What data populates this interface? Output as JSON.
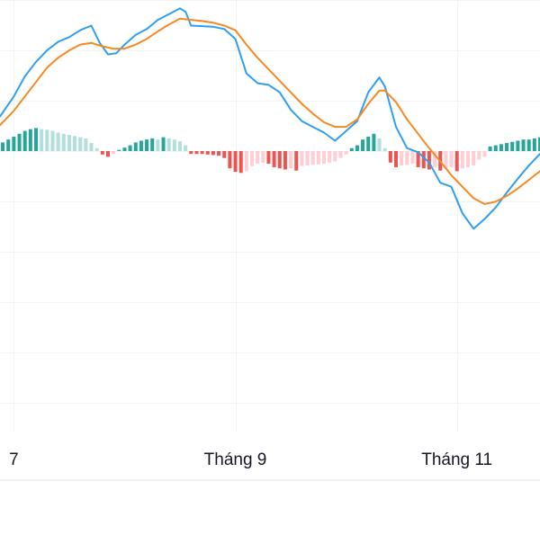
{
  "chart_data": {
    "type": "line",
    "indicator": "MACD",
    "x_ticks": [
      {
        "label": "7",
        "x": 0
      },
      {
        "label": "Tháng 9",
        "x": 40
      },
      {
        "label": "Tháng 11",
        "x": 80
      }
    ],
    "x_range": [
      -2.5,
      95
    ],
    "y_range": [
      -3.0,
      2.5
    ],
    "grid": true,
    "series": [
      {
        "role": "macd",
        "color": "#2e9ff0",
        "values": [
          {
            "x": -2.5,
            "y": 0.6
          },
          {
            "x": 0,
            "y": 0.95
          },
          {
            "x": 2,
            "y": 1.3
          },
          {
            "x": 4,
            "y": 1.55
          },
          {
            "x": 6,
            "y": 1.75
          },
          {
            "x": 8,
            "y": 1.9
          },
          {
            "x": 10,
            "y": 1.98
          },
          {
            "x": 12,
            "y": 2.1
          },
          {
            "x": 14,
            "y": 2.18
          },
          {
            "x": 15.5,
            "y": 1.88
          },
          {
            "x": 17,
            "y": 1.68
          },
          {
            "x": 18.5,
            "y": 1.7
          },
          {
            "x": 20,
            "y": 1.85
          },
          {
            "x": 22,
            "y": 2.02
          },
          {
            "x": 24,
            "y": 2.12
          },
          {
            "x": 26,
            "y": 2.28
          },
          {
            "x": 28,
            "y": 2.38
          },
          {
            "x": 30,
            "y": 2.48
          },
          {
            "x": 31,
            "y": 2.42
          },
          {
            "x": 32,
            "y": 2.18
          },
          {
            "x": 34,
            "y": 2.17
          },
          {
            "x": 36,
            "y": 2.16
          },
          {
            "x": 38,
            "y": 2.12
          },
          {
            "x": 40,
            "y": 1.95
          },
          {
            "x": 42,
            "y": 1.35
          },
          {
            "x": 44,
            "y": 1.18
          },
          {
            "x": 46,
            "y": 1.15
          },
          {
            "x": 48,
            "y": 1.02
          },
          {
            "x": 50,
            "y": 0.72
          },
          {
            "x": 52,
            "y": 0.52
          },
          {
            "x": 54,
            "y": 0.42
          },
          {
            "x": 56,
            "y": 0.32
          },
          {
            "x": 58,
            "y": 0.18
          },
          {
            "x": 60,
            "y": 0.35
          },
          {
            "x": 62,
            "y": 0.52
          },
          {
            "x": 64,
            "y": 1.02
          },
          {
            "x": 66,
            "y": 1.28
          },
          {
            "x": 67,
            "y": 1.12
          },
          {
            "x": 69,
            "y": 0.42
          },
          {
            "x": 71,
            "y": 0.05
          },
          {
            "x": 73,
            "y": -0.02
          },
          {
            "x": 75,
            "y": -0.2
          },
          {
            "x": 77,
            "y": -0.55
          },
          {
            "x": 79,
            "y": -0.62
          },
          {
            "x": 81,
            "y": -1.08
          },
          {
            "x": 83,
            "y": -1.35
          },
          {
            "x": 85,
            "y": -1.18
          },
          {
            "x": 87,
            "y": -0.98
          },
          {
            "x": 89,
            "y": -0.72
          },
          {
            "x": 91,
            "y": -0.48
          },
          {
            "x": 93,
            "y": -0.25
          },
          {
            "x": 95,
            "y": -0.05
          }
        ]
      },
      {
        "role": "signal",
        "color": "#f5891f",
        "values": [
          {
            "x": -2.5,
            "y": 0.45
          },
          {
            "x": 0,
            "y": 0.7
          },
          {
            "x": 2,
            "y": 0.95
          },
          {
            "x": 4,
            "y": 1.2
          },
          {
            "x": 6,
            "y": 1.45
          },
          {
            "x": 8,
            "y": 1.62
          },
          {
            "x": 10,
            "y": 1.75
          },
          {
            "x": 12,
            "y": 1.85
          },
          {
            "x": 14,
            "y": 1.88
          },
          {
            "x": 16,
            "y": 1.82
          },
          {
            "x": 18,
            "y": 1.78
          },
          {
            "x": 20,
            "y": 1.78
          },
          {
            "x": 22,
            "y": 1.85
          },
          {
            "x": 24,
            "y": 1.95
          },
          {
            "x": 26,
            "y": 2.08
          },
          {
            "x": 28,
            "y": 2.2
          },
          {
            "x": 30,
            "y": 2.3
          },
          {
            "x": 32,
            "y": 2.28
          },
          {
            "x": 34,
            "y": 2.26
          },
          {
            "x": 36,
            "y": 2.23
          },
          {
            "x": 38,
            "y": 2.18
          },
          {
            "x": 40,
            "y": 2.1
          },
          {
            "x": 42,
            "y": 1.85
          },
          {
            "x": 44,
            "y": 1.62
          },
          {
            "x": 46,
            "y": 1.42
          },
          {
            "x": 48,
            "y": 1.22
          },
          {
            "x": 50,
            "y": 1.02
          },
          {
            "x": 52,
            "y": 0.82
          },
          {
            "x": 54,
            "y": 0.65
          },
          {
            "x": 56,
            "y": 0.5
          },
          {
            "x": 58,
            "y": 0.42
          },
          {
            "x": 60,
            "y": 0.42
          },
          {
            "x": 62,
            "y": 0.55
          },
          {
            "x": 64,
            "y": 0.82
          },
          {
            "x": 66,
            "y": 1.05
          },
          {
            "x": 67,
            "y": 1.05
          },
          {
            "x": 69,
            "y": 0.85
          },
          {
            "x": 71,
            "y": 0.55
          },
          {
            "x": 73,
            "y": 0.3
          },
          {
            "x": 75,
            "y": 0.05
          },
          {
            "x": 77,
            "y": -0.18
          },
          {
            "x": 79,
            "y": -0.42
          },
          {
            "x": 81,
            "y": -0.62
          },
          {
            "x": 83,
            "y": -0.82
          },
          {
            "x": 85,
            "y": -0.92
          },
          {
            "x": 87,
            "y": -0.88
          },
          {
            "x": 89,
            "y": -0.78
          },
          {
            "x": 91,
            "y": -0.65
          },
          {
            "x": 93,
            "y": -0.5
          },
          {
            "x": 95,
            "y": -0.35
          }
        ]
      }
    ],
    "histogram": {
      "colors": {
        "pos_rising": "#26a69a",
        "pos_falling": "#b2dfdb",
        "neg_falling": "#ef5350",
        "neg_rising": "#ffcdd2"
      },
      "values": [
        {
          "x": -2,
          "y": 0.15
        },
        {
          "x": -1,
          "y": 0.2
        },
        {
          "x": 0,
          "y": 0.25
        },
        {
          "x": 1,
          "y": 0.3
        },
        {
          "x": 2,
          "y": 0.35
        },
        {
          "x": 3,
          "y": 0.38
        },
        {
          "x": 4,
          "y": 0.4
        },
        {
          "x": 5,
          "y": 0.38
        },
        {
          "x": 6,
          "y": 0.37
        },
        {
          "x": 7,
          "y": 0.35
        },
        {
          "x": 8,
          "y": 0.32
        },
        {
          "x": 9,
          "y": 0.3
        },
        {
          "x": 10,
          "y": 0.28
        },
        {
          "x": 11,
          "y": 0.26
        },
        {
          "x": 12,
          "y": 0.24
        },
        {
          "x": 13,
          "y": 0.22
        },
        {
          "x": 14,
          "y": 0.14
        },
        {
          "x": 15,
          "y": 0.05
        },
        {
          "x": 16,
          "y": -0.06
        },
        {
          "x": 17,
          "y": -0.1
        },
        {
          "x": 18,
          "y": -0.05
        },
        {
          "x": 19,
          "y": 0.02
        },
        {
          "x": 20,
          "y": 0.06
        },
        {
          "x": 21,
          "y": 0.1
        },
        {
          "x": 22,
          "y": 0.15
        },
        {
          "x": 23,
          "y": 0.18
        },
        {
          "x": 24,
          "y": 0.2
        },
        {
          "x": 25,
          "y": 0.22
        },
        {
          "x": 26,
          "y": 0.2
        },
        {
          "x": 27,
          "y": 0.24
        },
        {
          "x": 28,
          "y": 0.22
        },
        {
          "x": 29,
          "y": 0.2
        },
        {
          "x": 30,
          "y": 0.17
        },
        {
          "x": 31,
          "y": 0.1
        },
        {
          "x": 32,
          "y": -0.05
        },
        {
          "x": 33,
          "y": -0.05
        },
        {
          "x": 34,
          "y": -0.05
        },
        {
          "x": 35,
          "y": -0.06
        },
        {
          "x": 36,
          "y": -0.07
        },
        {
          "x": 37,
          "y": -0.08
        },
        {
          "x": 38,
          "y": -0.12
        },
        {
          "x": 39,
          "y": -0.3
        },
        {
          "x": 40,
          "y": -0.36
        },
        {
          "x": 41,
          "y": -0.38
        },
        {
          "x": 42,
          "y": -0.35
        },
        {
          "x": 43,
          "y": -0.26
        },
        {
          "x": 44,
          "y": -0.22
        },
        {
          "x": 45,
          "y": -0.2
        },
        {
          "x": 46,
          "y": -0.22
        },
        {
          "x": 47,
          "y": -0.28
        },
        {
          "x": 48,
          "y": -0.3
        },
        {
          "x": 49,
          "y": -0.32
        },
        {
          "x": 50,
          "y": -0.3
        },
        {
          "x": 51,
          "y": -0.34
        },
        {
          "x": 52,
          "y": -0.26
        },
        {
          "x": 53,
          "y": -0.25
        },
        {
          "x": 54,
          "y": -0.24
        },
        {
          "x": 55,
          "y": -0.23
        },
        {
          "x": 56,
          "y": -0.22
        },
        {
          "x": 57,
          "y": -0.2
        },
        {
          "x": 58,
          "y": -0.18
        },
        {
          "x": 59,
          "y": -0.12
        },
        {
          "x": 60,
          "y": -0.06
        },
        {
          "x": 61,
          "y": 0.05
        },
        {
          "x": 62,
          "y": 0.1
        },
        {
          "x": 63,
          "y": 0.2
        },
        {
          "x": 64,
          "y": 0.25
        },
        {
          "x": 65,
          "y": 0.3
        },
        {
          "x": 66,
          "y": 0.22
        },
        {
          "x": 67,
          "y": 0.05
        },
        {
          "x": 68,
          "y": -0.2
        },
        {
          "x": 69,
          "y": -0.28
        },
        {
          "x": 70,
          "y": -0.25
        },
        {
          "x": 71,
          "y": -0.24
        },
        {
          "x": 72,
          "y": -0.22
        },
        {
          "x": 73,
          "y": -0.28
        },
        {
          "x": 74,
          "y": -0.3
        },
        {
          "x": 75,
          "y": -0.32
        },
        {
          "x": 76,
          "y": -0.28
        },
        {
          "x": 77,
          "y": -0.34
        },
        {
          "x": 78,
          "y": -0.3
        },
        {
          "x": 79,
          "y": -0.28
        },
        {
          "x": 80,
          "y": -0.35
        },
        {
          "x": 81,
          "y": -0.3
        },
        {
          "x": 82,
          "y": -0.28
        },
        {
          "x": 83,
          "y": -0.25
        },
        {
          "x": 84,
          "y": -0.15
        },
        {
          "x": 85,
          "y": -0.1
        },
        {
          "x": 86,
          "y": 0.08
        },
        {
          "x": 87,
          "y": 0.1
        },
        {
          "x": 88,
          "y": 0.12
        },
        {
          "x": 89,
          "y": 0.14
        },
        {
          "x": 90,
          "y": 0.16
        },
        {
          "x": 91,
          "y": 0.18
        },
        {
          "x": 92,
          "y": 0.2
        },
        {
          "x": 93,
          "y": 0.2
        },
        {
          "x": 94,
          "y": 0.22
        },
        {
          "x": 95,
          "y": 0.24
        }
      ]
    }
  }
}
